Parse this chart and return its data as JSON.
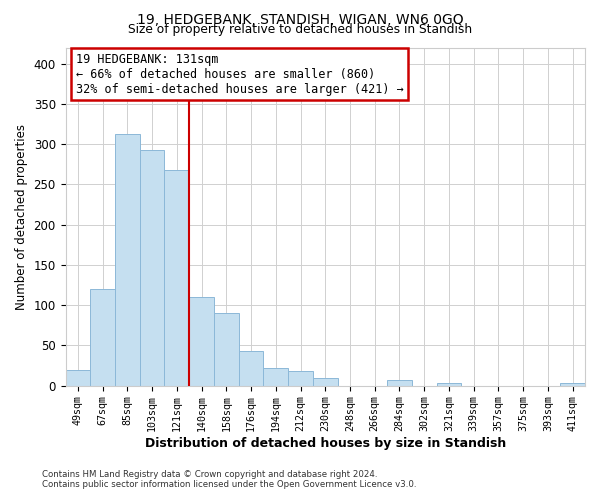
{
  "title": "19, HEDGEBANK, STANDISH, WIGAN, WN6 0GQ",
  "subtitle": "Size of property relative to detached houses in Standish",
  "xlabel": "Distribution of detached houses by size in Standish",
  "ylabel": "Number of detached properties",
  "bar_labels": [
    "49sqm",
    "67sqm",
    "85sqm",
    "103sqm",
    "121sqm",
    "140sqm",
    "158sqm",
    "176sqm",
    "194sqm",
    "212sqm",
    "230sqm",
    "248sqm",
    "266sqm",
    "284sqm",
    "302sqm",
    "321sqm",
    "339sqm",
    "357sqm",
    "375sqm",
    "393sqm",
    "411sqm"
  ],
  "bar_values": [
    20,
    120,
    313,
    293,
    268,
    110,
    90,
    43,
    22,
    18,
    9,
    0,
    0,
    7,
    0,
    4,
    0,
    0,
    0,
    0,
    3
  ],
  "bar_color": "#c5dff0",
  "bar_edge_color": "#8cb8d8",
  "vline_x_index": 4.5,
  "vline_color": "#cc0000",
  "annotation_title": "19 HEDGEBANK: 131sqm",
  "annotation_line1": "← 66% of detached houses are smaller (860)",
  "annotation_line2": "32% of semi-detached houses are larger (421) →",
  "annotation_box_color": "white",
  "annotation_box_edge": "#cc0000",
  "ylim": [
    0,
    420
  ],
  "yticks": [
    0,
    50,
    100,
    150,
    200,
    250,
    300,
    350,
    400
  ],
  "footer1": "Contains HM Land Registry data © Crown copyright and database right 2024.",
  "footer2": "Contains public sector information licensed under the Open Government Licence v3.0."
}
